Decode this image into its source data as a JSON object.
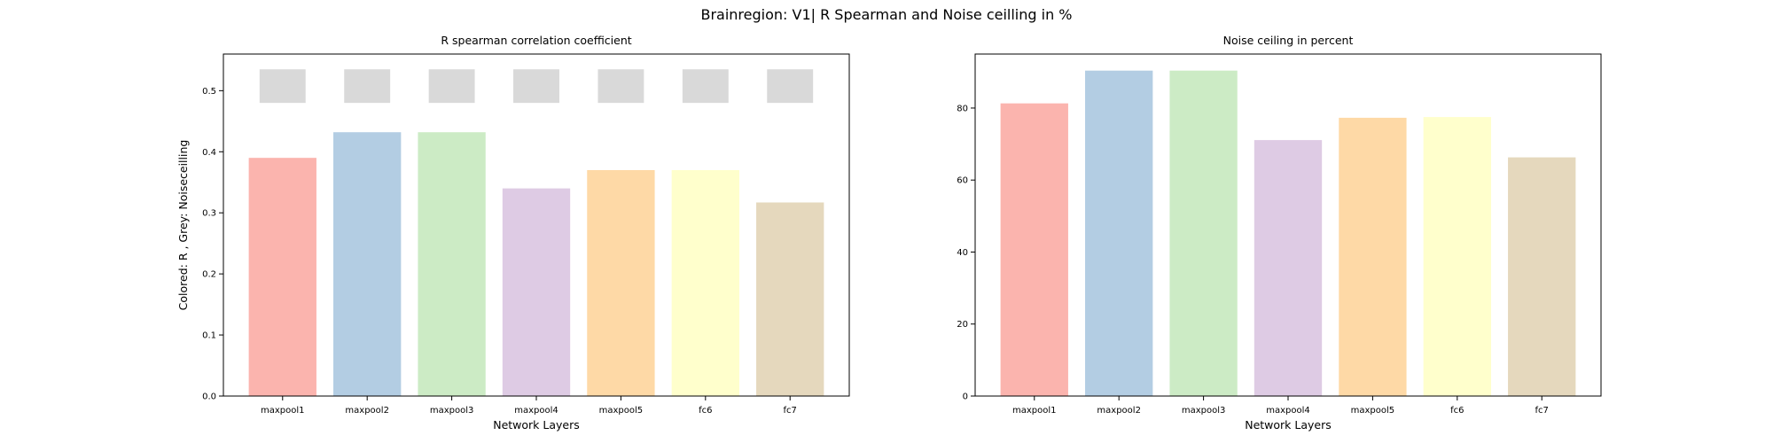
{
  "figure": {
    "title": "Brainregion: V1| R Spearman and Noise ceilling in %"
  },
  "colors": [
    "#fbb4ae",
    "#b3cde3",
    "#ccebc5",
    "#decbe4",
    "#fed9a6",
    "#ffffcc",
    "#e5d8bd"
  ],
  "noise_color": "#d9d9d9",
  "chart_data": [
    {
      "type": "bar",
      "title": "R spearman correlation coefficient",
      "xlabel": "Network Layers",
      "ylabel": "Colored: R , Grey: Noiseceilling",
      "categories": [
        "maxpool1",
        "maxpool2",
        "maxpool3",
        "maxpool4",
        "maxpool5",
        "fc6",
        "fc7"
      ],
      "series": [
        {
          "values": [
            0.39,
            0.432,
            0.432,
            0.34,
            0.37,
            0.37,
            0.317
          ]
        }
      ],
      "noise_ceiling": {
        "lower": 0.48,
        "upper": 0.535
      },
      "ylim": [
        0,
        0.56
      ],
      "yticks": [
        "0.0",
        "0.1",
        "0.2",
        "0.3",
        "0.4",
        "0.5"
      ]
    },
    {
      "type": "bar",
      "title": "Noise ceiling in percent",
      "xlabel": "Network Layers",
      "ylabel": "",
      "categories": [
        "maxpool1",
        "maxpool2",
        "maxpool3",
        "maxpool4",
        "maxpool5",
        "fc6",
        "fc7"
      ],
      "series": [
        {
          "values": [
            81.3,
            90.4,
            90.4,
            71.1,
            77.3,
            77.5,
            66.3
          ]
        }
      ],
      "ylim": [
        0,
        95
      ],
      "yticks": [
        "0",
        "20",
        "40",
        "60",
        "80"
      ]
    }
  ]
}
